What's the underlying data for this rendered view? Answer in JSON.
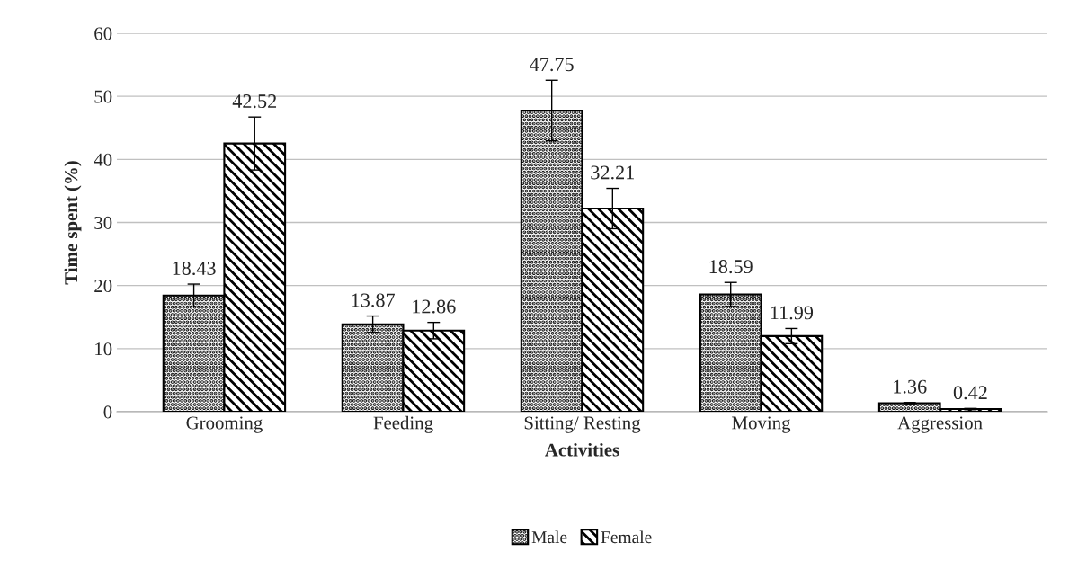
{
  "chart_data": {
    "type": "bar",
    "xlabel": "Activities",
    "ylabel": "Time spent (%)",
    "categories": [
      "Grooming",
      "Feeding",
      "Sitting/ Resting",
      "Moving",
      "Aggression"
    ],
    "series": [
      {
        "name": "Male",
        "color": "#000000",
        "values": [
          18.43,
          13.87,
          47.75,
          18.59,
          1.36
        ],
        "errors": [
          1.8,
          1.3,
          4.8,
          1.9,
          0.1
        ]
      },
      {
        "name": "Female",
        "color": "#000000",
        "values": [
          42.52,
          12.86,
          32.21,
          11.99,
          0.42
        ],
        "errors": [
          4.2,
          1.3,
          3.2,
          1.2,
          0.1
        ]
      }
    ],
    "ylim": [
      0,
      60
    ],
    "yticks": [
      0,
      10,
      20,
      30,
      40,
      50,
      60
    ],
    "grid": "y",
    "legend": "bottom",
    "data_labels": true
  }
}
